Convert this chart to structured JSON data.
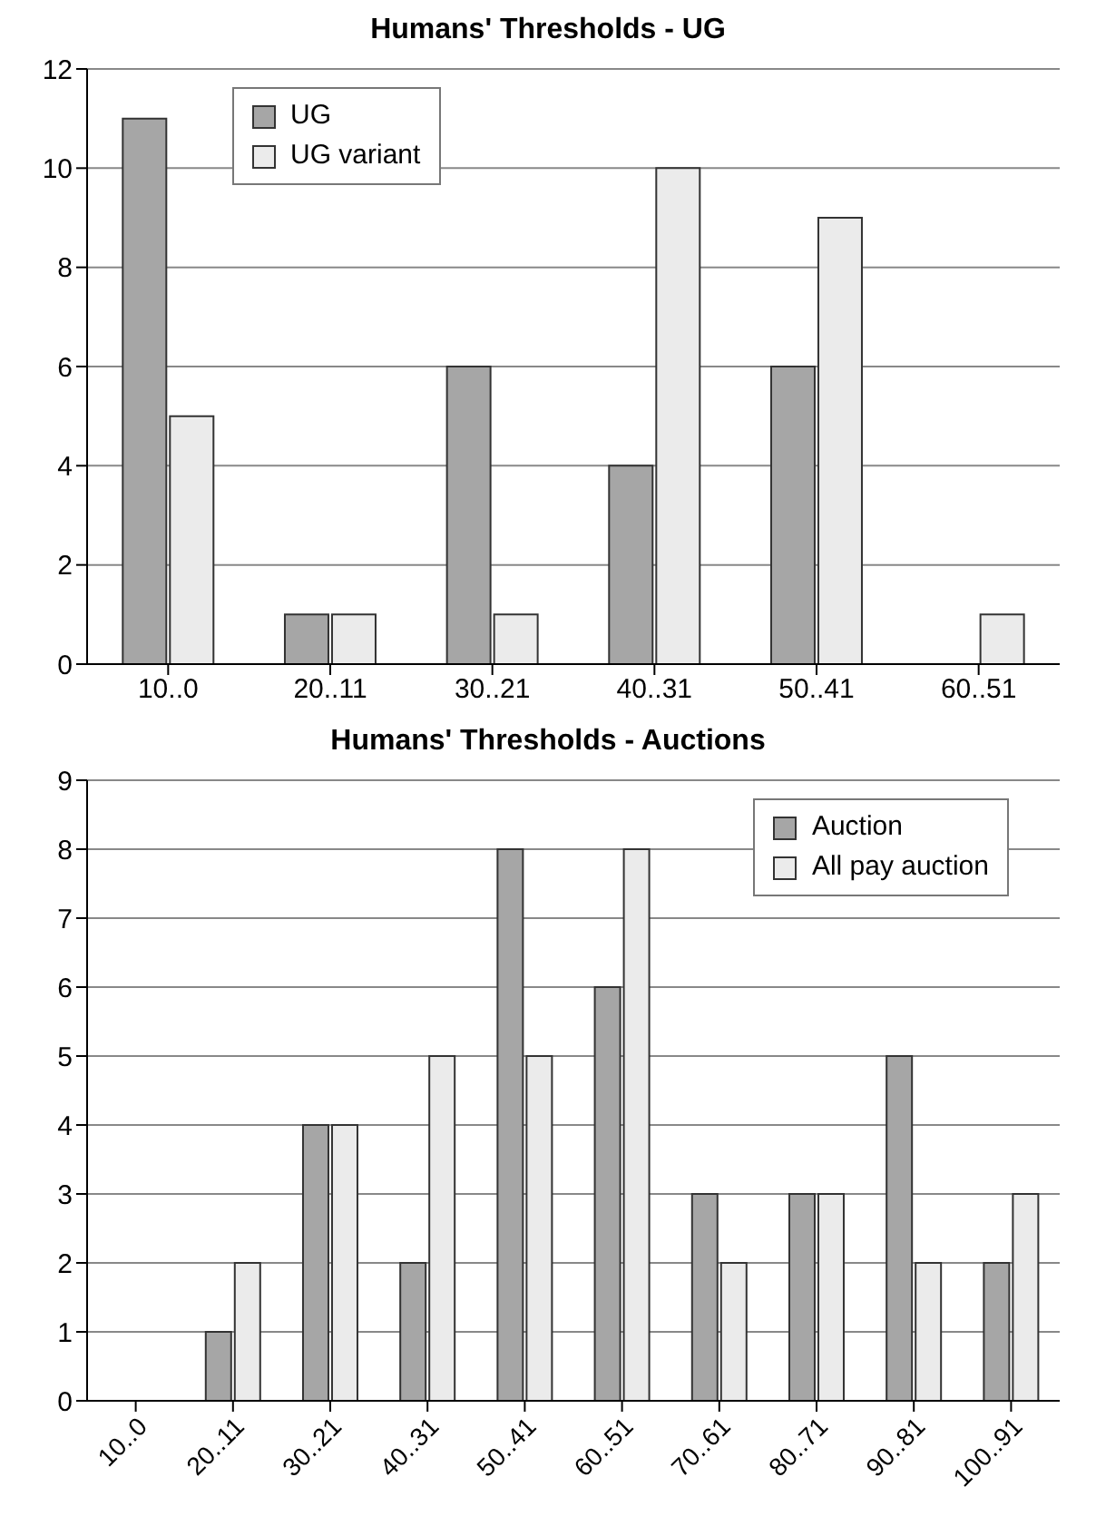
{
  "chart_data": [
    {
      "type": "bar",
      "title": "Humans' Thresholds - UG",
      "categories": [
        "10..0",
        "20..11",
        "30..21",
        "40..31",
        "50..41",
        "60..51"
      ],
      "series": [
        {
          "name": "UG",
          "color": "#a6a6a6",
          "values": [
            11,
            1,
            6,
            4,
            6,
            0
          ]
        },
        {
          "name": "UG variant",
          "color": "#ebebeb",
          "values": [
            5,
            1,
            1,
            10,
            9,
            1
          ]
        }
      ],
      "ylim": [
        0,
        12
      ],
      "yticks": [
        0,
        2,
        4,
        6,
        8,
        10,
        12
      ],
      "grid": "y",
      "legend": "top left"
    },
    {
      "type": "bar",
      "title": "Humans' Thresholds - Auctions",
      "categories": [
        "10..0",
        "20..11",
        "30..21",
        "40..31",
        "50..41",
        "60..51",
        "70..61",
        "80..71",
        "90..81",
        "100..91"
      ],
      "series": [
        {
          "name": "Auction",
          "color": "#a6a6a6",
          "values": [
            0,
            1,
            4,
            2,
            8,
            6,
            3,
            3,
            5,
            2
          ]
        },
        {
          "name": "All pay auction",
          "color": "#ebebeb",
          "values": [
            0,
            2,
            4,
            5,
            5,
            8,
            2,
            3,
            2,
            3
          ]
        }
      ],
      "ylim": [
        0,
        9
      ],
      "yticks": [
        0,
        1,
        2,
        3,
        4,
        5,
        6,
        7,
        8,
        9
      ],
      "grid": "y",
      "legend": "top right"
    }
  ]
}
